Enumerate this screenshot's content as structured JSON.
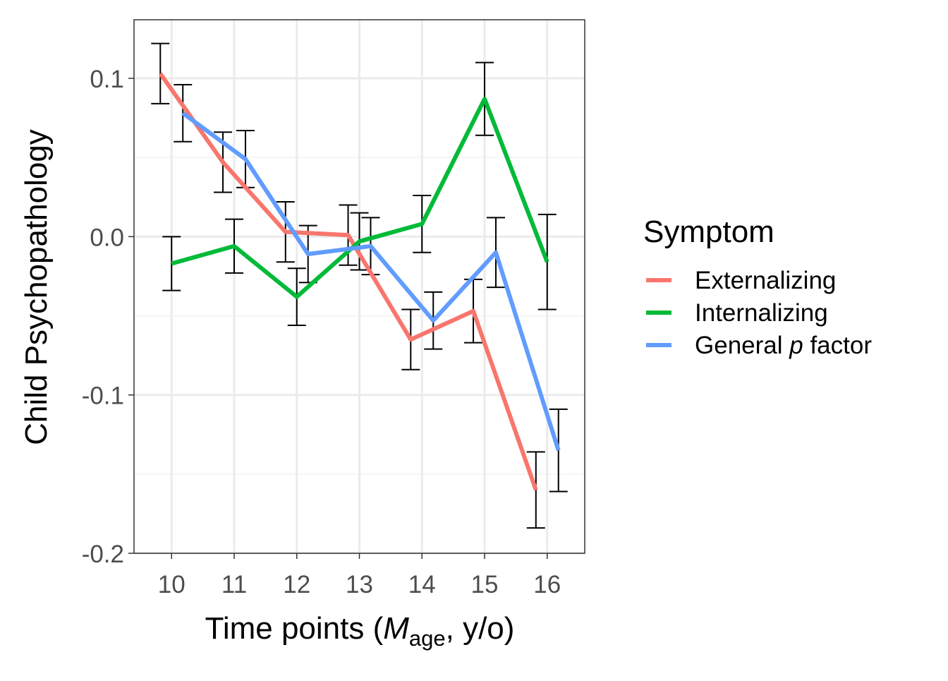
{
  "chart_data": {
    "type": "line",
    "title": "",
    "xlabel": {
      "prefix": "Time points (",
      "italic": "M",
      "subscript": "age",
      "suffix": ", y/o)"
    },
    "ylabel": "Child Psychopathology",
    "x": [
      10,
      11,
      12,
      13,
      14,
      15,
      16
    ],
    "x_tick_labels": [
      "10",
      "11",
      "12",
      "13",
      "14",
      "15",
      "16"
    ],
    "y_ticks": [
      0.1,
      0.0,
      -0.1,
      -0.2
    ],
    "y_tick_labels": [
      "0.1",
      "0.0",
      "-0.1",
      "-0.2"
    ],
    "ylim": [
      -0.2,
      0.137
    ],
    "xlim": [
      9.4,
      16.6
    ],
    "grid": true,
    "error_bars": true,
    "legend": {
      "title": "Symptom",
      "position": "right"
    },
    "series": [
      {
        "name": "Externalizing",
        "color": "#F8766D",
        "dodge": -0.18,
        "values": [
          0.103,
          0.047,
          0.003,
          0.001,
          -0.065,
          -0.047,
          -0.16
        ],
        "se": [
          0.019,
          0.019,
          0.019,
          0.019,
          0.019,
          0.02,
          0.024
        ]
      },
      {
        "name": "Internalizing",
        "color": "#00BA38",
        "dodge": 0,
        "values": [
          -0.017,
          -0.006,
          -0.038,
          -0.003,
          0.008,
          0.087,
          -0.016
        ],
        "se": [
          0.017,
          0.017,
          0.018,
          0.018,
          0.018,
          0.023,
          0.03
        ]
      },
      {
        "name": "General p factor",
        "name_parts": [
          "General ",
          "p",
          " factor"
        ],
        "color": "#619CFF",
        "dodge": 0.18,
        "values": [
          0.078,
          0.049,
          -0.011,
          -0.006,
          -0.053,
          -0.01,
          -0.135
        ],
        "se": [
          0.018,
          0.018,
          0.018,
          0.018,
          0.018,
          0.022,
          0.026
        ]
      }
    ]
  }
}
